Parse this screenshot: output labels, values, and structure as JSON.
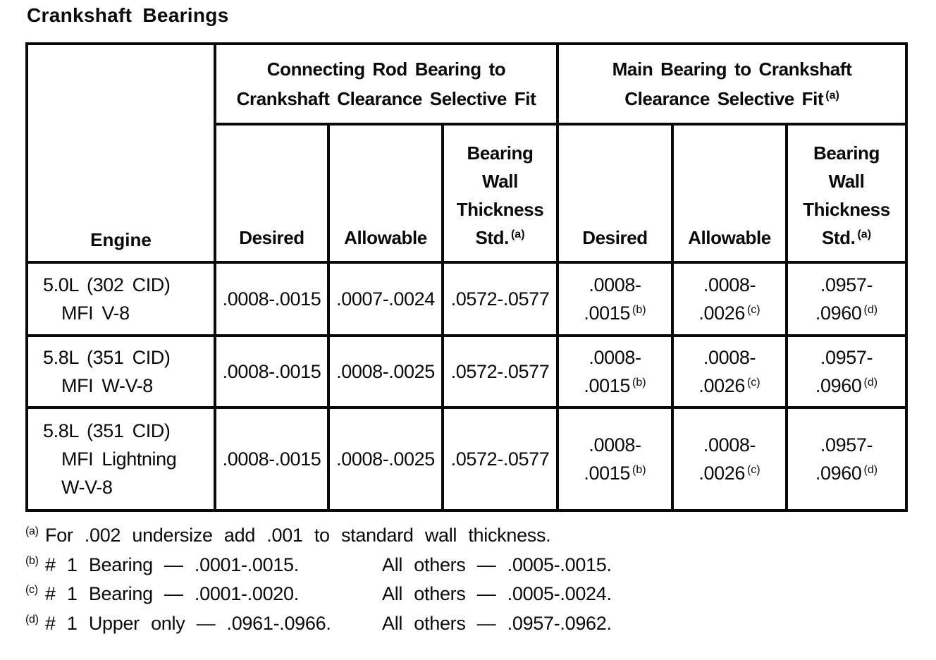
{
  "title": "Crankshaft Bearings",
  "colors": {
    "ink": "#0a0a0a",
    "paper": "#ffffff"
  },
  "table": {
    "engine_header": "Engine",
    "group_headers": {
      "connecting_rod": {
        "line1": "Connecting Rod Bearing to",
        "line2": "Crankshaft Clearance Selective Fit"
      },
      "main_bearing": {
        "line1": "Main Bearing to Crankshaft",
        "line2": "Clearance Selective Fit",
        "footnote_ref": "(a)"
      }
    },
    "column_headers": {
      "desired": "Desired",
      "allowable": "Allowable",
      "wall": {
        "line1": "Bearing",
        "line2": "Wall",
        "line3": "Thickness",
        "line4": "Std.",
        "footnote_ref": "(a)"
      }
    },
    "rows": [
      {
        "engine": {
          "line1": "5.0L (302 CID)",
          "line2": "MFI V-8"
        },
        "cr_desired": ".0008-.0015",
        "cr_allowable": ".0007-.0024",
        "cr_wall": ".0572-.0577",
        "mb_desired": {
          "line1": ".0008-",
          "line2": ".0015",
          "ref": "(b)"
        },
        "mb_allowable": {
          "line1": ".0008-",
          "line2": ".0026",
          "ref": "(c)"
        },
        "mb_wall": {
          "line1": ".0957-",
          "line2": ".0960",
          "ref": "(d)"
        }
      },
      {
        "engine": {
          "line1": "5.8L (351 CID)",
          "line2": "MFI W-V-8"
        },
        "cr_desired": ".0008-.0015",
        "cr_allowable": ".0008-.0025",
        "cr_wall": ".0572-.0577",
        "mb_desired": {
          "line1": ".0008-",
          "line2": ".0015",
          "ref": "(b)"
        },
        "mb_allowable": {
          "line1": ".0008-",
          "line2": ".0026",
          "ref": "(c)"
        },
        "mb_wall": {
          "line1": ".0957-",
          "line2": ".0960",
          "ref": "(d)"
        }
      },
      {
        "engine": {
          "line1": "5.8L (351 CID)",
          "line2": "MFI Lightning",
          "line3": "W-V-8"
        },
        "cr_desired": ".0008-.0015",
        "cr_allowable": ".0008-.0025",
        "cr_wall": ".0572-.0577",
        "mb_desired": {
          "line1": ".0008-",
          "line2": ".0015",
          "ref": "(b)"
        },
        "mb_allowable": {
          "line1": ".0008-",
          "line2": ".0026",
          "ref": "(c)"
        },
        "mb_wall": {
          "line1": ".0957-",
          "line2": ".0960",
          "ref": "(d)"
        }
      }
    ]
  },
  "footnotes": [
    {
      "marker": "(a)",
      "text1": "For .002 undersize add .001 to standard wall thickness.",
      "text2": ""
    },
    {
      "marker": "(b)",
      "text1": "# 1 Bearing — .0001-.0015.",
      "text2": "All others — .0005-.0015."
    },
    {
      "marker": "(c)",
      "text1": "# 1 Bearing — .0001-.0020.",
      "text2": "All others — .0005-.0024."
    },
    {
      "marker": "(d)",
      "text1": "# 1 Upper only — .0961-.0966.",
      "text2": "All others — .0957-.0962."
    }
  ]
}
